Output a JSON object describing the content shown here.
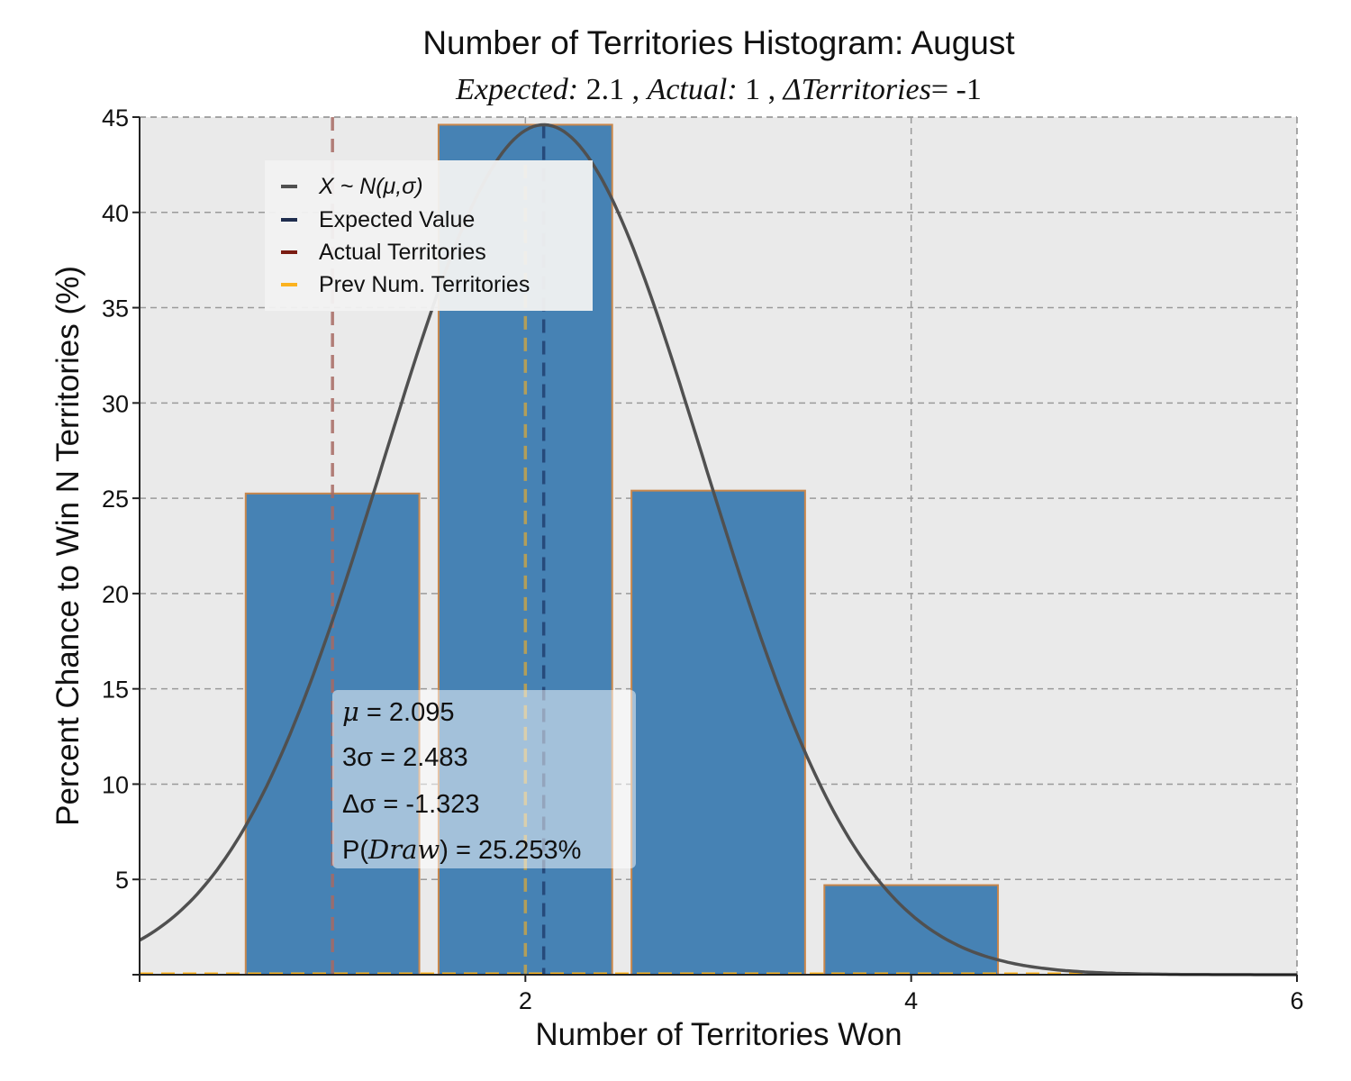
{
  "chart_data": {
    "type": "bar",
    "title": "Number of Territories Histogram: August",
    "subtitle": {
      "expected_label": "Expected:",
      "expected_value": "2.1",
      "actual_label": "Actual:",
      "actual_value": "1",
      "delta_label": "ΔTerritories",
      "delta_value": "= -1"
    },
    "xlabel": "Number of Territories Won",
    "ylabel": "Percent Chance to Win N Territories (%)",
    "xlim": [
      0,
      6
    ],
    "ylim": [
      0,
      45
    ],
    "xticks": [
      2,
      4,
      6
    ],
    "yticks": [
      5,
      10,
      15,
      20,
      25,
      30,
      35,
      40,
      45
    ],
    "grid": true,
    "bar_width": 0.9,
    "categories": [
      1,
      2,
      3,
      4
    ],
    "values": [
      25.25,
      44.6,
      25.4,
      4.7
    ],
    "normal_curve": {
      "mean": 2.095,
      "sigma": 0.8277,
      "peak": 44.6
    },
    "reference_lines": {
      "expected_value": 2.095,
      "actual_territories": 1,
      "prev_num_territories": 2
    },
    "legend": {
      "position": "upper-left",
      "entries": [
        {
          "label": "X ~ N(μ,σ)",
          "color": "#505050"
        },
        {
          "label": "Expected Value",
          "color": "#1f2d4e"
        },
        {
          "label": "Actual Territories",
          "color": "#7a1c12"
        },
        {
          "label": "Prev Num. Territories",
          "color": "#fbb21f"
        }
      ]
    },
    "stats": {
      "mu_label": "μ",
      "mu_value": " = 2.095",
      "three_sigma_label": "3σ",
      "three_sigma_value": " = 2.483",
      "delta_sigma_label": "Δσ",
      "delta_sigma_value": " = -1.323",
      "p_draw_label": "P(",
      "p_draw_var": "Draw",
      "p_draw_value": ") = 25.253%"
    },
    "colors": {
      "bar_fill": "#4682b4",
      "bar_edge": "#c8874c",
      "plot_bg": "#eaeaea",
      "grid": "#9a9a9a",
      "curve": "#505050",
      "expected_line": "#1f3d6e",
      "actual_line": "#a86a64",
      "prev_line": "#fbb21f"
    }
  }
}
